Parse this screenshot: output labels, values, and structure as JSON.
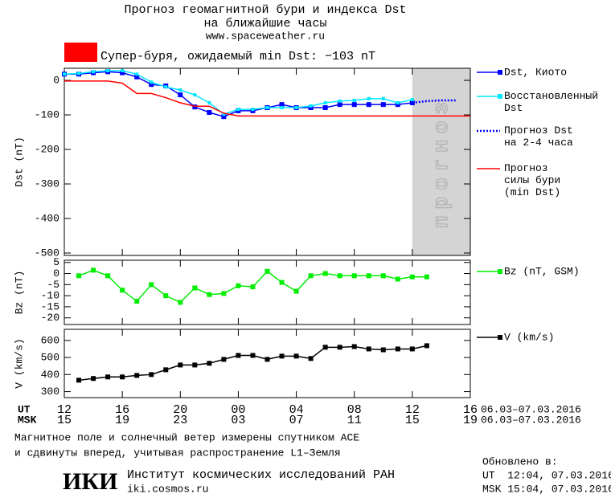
{
  "header": {
    "title": "Прогноз геомагнитной бури и индекса Dst",
    "subtitle": "на ближайшие часы",
    "url": "www.spaceweather.ru"
  },
  "chart_data": [
    {
      "type": "line",
      "ylabel": "Dst (nT)",
      "xlim": [
        12,
        40
      ],
      "ylim": [
        -507,
        35
      ],
      "yticks": [
        0,
        -100,
        -200,
        -300,
        -400,
        -500
      ],
      "forecast_region": [
        36,
        40
      ],
      "forecast_label": "прогноз",
      "annotation": "Супер-буря, ожидаемый min Dst: −103 nT",
      "annotation_color": "#ff0000",
      "series": [
        {
          "name": "Dst, Киото",
          "color": "#0000ff",
          "marker": "square",
          "dash": false,
          "x": [
            12,
            13,
            14,
            15,
            16,
            17,
            18,
            19,
            20,
            21,
            22,
            23,
            24,
            25,
            26,
            27,
            28,
            29,
            30,
            31,
            32,
            33,
            34,
            35,
            36
          ],
          "values": [
            18,
            18,
            22,
            25,
            22,
            10,
            -12,
            -16,
            -42,
            -77,
            -93,
            -105,
            -88,
            -88,
            -79,
            -70,
            -79,
            -79,
            -79,
            -70,
            -70,
            -70,
            -70,
            -70,
            -65
          ]
        },
        {
          "name": "Восстановленный\nDst",
          "color": "#00e8ff",
          "marker": "small",
          "dash": false,
          "x": [
            12,
            13,
            14,
            15,
            16,
            17,
            18,
            19,
            20,
            21,
            22,
            23,
            24,
            25,
            26,
            27,
            28,
            29,
            30,
            31,
            32,
            33,
            34,
            35,
            36
          ],
          "values": [
            18,
            20,
            25,
            28,
            28,
            18,
            -5,
            -19,
            -28,
            -42,
            -65,
            -98,
            -84,
            -84,
            -79,
            -79,
            -79,
            -74,
            -65,
            -60,
            -58,
            -53,
            -53,
            -65,
            -56
          ]
        },
        {
          "name": "Прогноз Dst\nна 2-4 часа",
          "color": "#0000ff",
          "marker": "none",
          "dash": true,
          "x": [
            36,
            37,
            38,
            39
          ],
          "values": [
            -65,
            -60,
            -58,
            -58
          ]
        },
        {
          "name": "Прогноз\nсилы бури\n(min Dst)",
          "color": "#ff0000",
          "marker": "none",
          "dash": false,
          "x": [
            12,
            15,
            16,
            17,
            18,
            19,
            20,
            21,
            22,
            23,
            24,
            40
          ],
          "values": [
            -2,
            -2,
            -8,
            -38,
            -38,
            -50,
            -65,
            -75,
            -75,
            -95,
            -103,
            -103
          ]
        }
      ]
    },
    {
      "type": "line",
      "ylabel": "Bz (nT)",
      "xlim": [
        12,
        40
      ],
      "ylim": [
        -23,
        6
      ],
      "yticks": [
        5,
        0,
        -5,
        -10,
        -15,
        -20
      ],
      "series": [
        {
          "name": "Bz (nT, GSM)",
          "color": "#00ee00",
          "marker": "square",
          "dash": false,
          "x": [
            13,
            14,
            15,
            16,
            17,
            18,
            19,
            20,
            21,
            22,
            23,
            24,
            25,
            26,
            27,
            28,
            29,
            30,
            31,
            32,
            33,
            34,
            35,
            36,
            37
          ],
          "values": [
            -1,
            1.5,
            -1,
            -7.5,
            -12.5,
            -5,
            -10,
            -13,
            -6.5,
            -9.5,
            -9,
            -5.5,
            -6,
            1,
            -4,
            -8,
            -1,
            0,
            -1,
            -1,
            -1,
            -1,
            -2.5,
            -1.5,
            -1.5
          ]
        }
      ]
    },
    {
      "type": "line",
      "ylabel": "V (km/s)",
      "xlim": [
        12,
        40
      ],
      "ylim": [
        265,
        665
      ],
      "yticks": [
        300,
        400,
        500,
        600
      ],
      "xticks": [
        12,
        16,
        20,
        {
          "value": 24,
          "label": "00"
        },
        {
          "value": 28,
          "label": "04"
        },
        {
          "value": 32,
          "label": "08"
        },
        {
          "value": 36,
          "label": "12"
        },
        {
          "value": 40,
          "label": "16"
        }
      ],
      "ut_label": "UT",
      "msk_label": "MSK",
      "msk_ticks": [
        "15",
        "19",
        "23",
        "03",
        "07",
        "11",
        "15",
        "19"
      ],
      "ut_dates": "06.03–07.03.2016",
      "msk_dates": "06.03–07.03.2016",
      "series": [
        {
          "name": "V (km/s)",
          "color": "#000000",
          "marker": "square",
          "dash": false,
          "x": [
            13,
            14,
            15,
            16,
            17,
            18,
            19,
            20,
            21,
            22,
            23,
            24,
            25,
            26,
            27,
            28,
            29,
            30,
            31,
            32,
            33,
            34,
            35,
            36,
            37
          ],
          "values": [
            367,
            377,
            386,
            386,
            395,
            400,
            428,
            456,
            456,
            466,
            489,
            512,
            512,
            489,
            508,
            508,
            494,
            560,
            560,
            564,
            550,
            545,
            550,
            550,
            569
          ]
        }
      ]
    }
  ],
  "footer": {
    "note": [
      "Магнитное поле и солнечный ветер измерены спутником ACE",
      "и сдвинуты вперед, учитывая распространение L1–Земля"
    ],
    "logo": "ИКИ",
    "institute": "Институт космических исследований РАН",
    "site": "iki.cosmos.ru",
    "updated_label": "Обновлено в:",
    "updated_ut": "UT  12:04, 07.03.2016",
    "updated_msk": "MSK 15:04, 07.03.2016"
  }
}
